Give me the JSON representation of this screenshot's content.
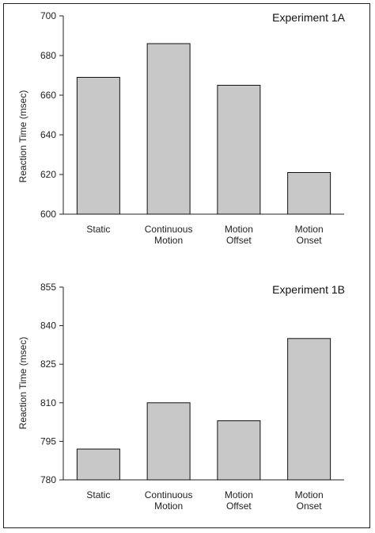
{
  "chart_data": [
    {
      "type": "bar",
      "title": "Experiment 1A",
      "ylabel": "Reaction Time (msec)",
      "xlabel": "",
      "categories": [
        "Static",
        "Continuous Motion",
        "Motion Offset",
        "Motion Onset"
      ],
      "values": [
        669,
        686,
        665,
        621
      ],
      "ylim": [
        600,
        700
      ],
      "yticks": [
        600,
        620,
        640,
        660,
        680,
        700
      ],
      "bar_color": "#c8c8c8",
      "grid": false
    },
    {
      "type": "bar",
      "title": "Experiment 1B",
      "ylabel": "Reaction Time (msec)",
      "xlabel": "",
      "categories": [
        "Static",
        "Continuous Motion",
        "Motion Offset",
        "Motion Onset"
      ],
      "values": [
        792,
        810,
        803,
        835
      ],
      "ylim": [
        780,
        855
      ],
      "yticks": [
        780,
        795,
        810,
        825,
        840,
        855
      ],
      "bar_color": "#c8c8c8",
      "grid": false
    }
  ]
}
